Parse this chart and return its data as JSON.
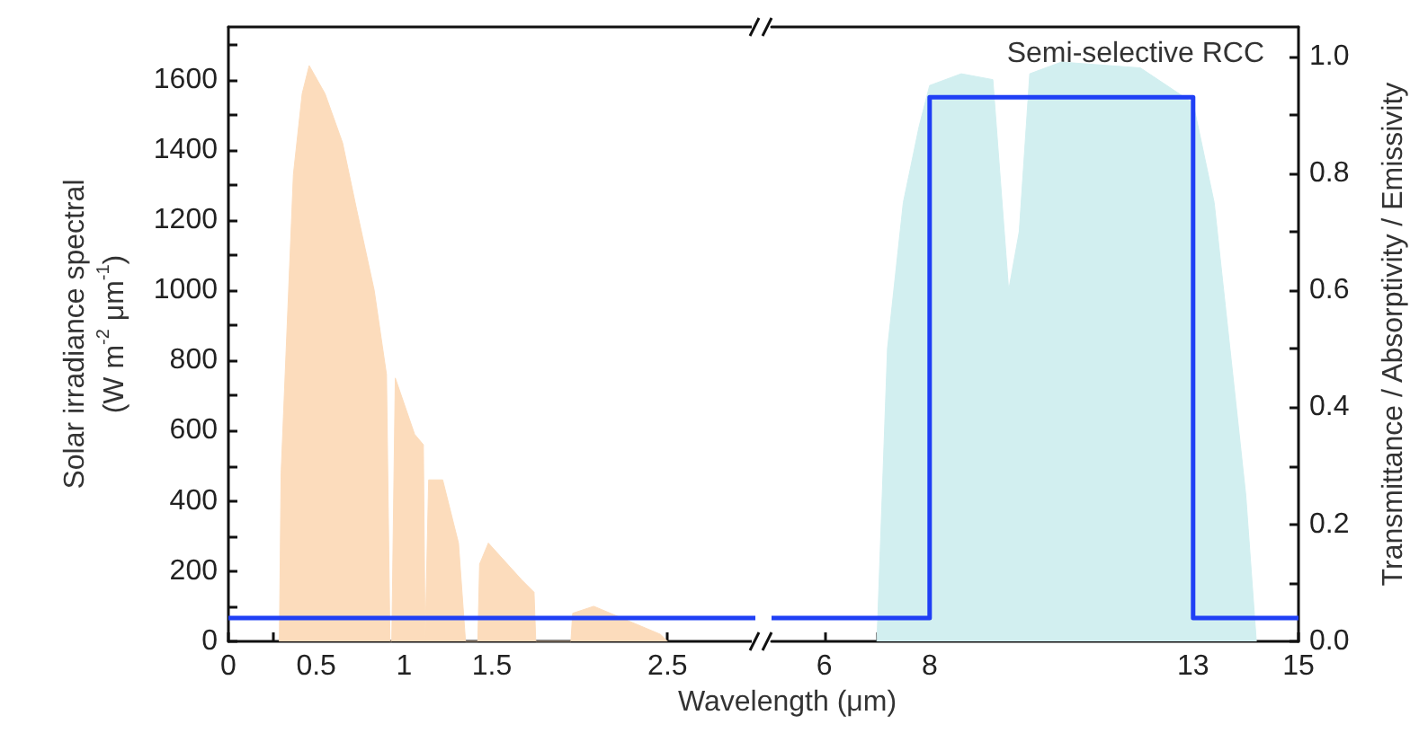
{
  "chart_data": [
    {
      "type": "area",
      "xlabel": "Wavelength (μm)",
      "ylabel": "Solar irradiance spectral\n(W m$^{-2}$ μm$^{-1}$)",
      "xlim": [
        0,
        3
      ],
      "xticks": [
        0,
        {
          "value": 0.25,
          "label": null
        },
        0.5,
        {
          "value": 0.75,
          "label": null
        },
        1,
        {
          "value": 1.25,
          "label": null
        },
        1.5,
        {
          "value": 2,
          "label": null
        },
        2.5
      ],
      "ylim": [
        0,
        1750
      ],
      "yticks": [
        0,
        {
          "value": 100,
          "label": null
        },
        200,
        {
          "value": 300,
          "label": null
        },
        400,
        {
          "value": 500,
          "label": null
        },
        600,
        {
          "value": 700,
          "label": null
        },
        800,
        {
          "value": 900,
          "label": null
        },
        1000,
        {
          "value": 1100,
          "label": null
        },
        1200,
        {
          "value": 1300,
          "label": null
        },
        1400,
        {
          "value": 1500,
          "label": null
        },
        1600,
        {
          "value": 1700,
          "label": null
        }
      ],
      "y2lim": [
        0,
        1.05
      ],
      "marker": "none",
      "line_style": "solid",
      "series": [
        {
          "color": "#fcdcbc",
          "x": [
            0.29,
            0.3,
            0.37,
            0.42,
            0.46,
            0.55,
            0.65,
            0.73,
            0.83,
            0.9,
            0.92,
            0.93,
            0.95,
            1.06,
            1.11,
            1.12,
            1.14,
            1.22,
            1.31,
            1.35,
            1.42,
            1.43,
            1.48,
            1.67,
            1.74,
            1.75,
            1.95,
            1.96,
            2.08,
            2.46,
            2.5
          ],
          "values": [
            0,
            480,
            1330,
            1560,
            1640,
            1560,
            1420,
            1230,
            1000,
            760,
            0,
            0,
            750,
            590,
            560,
            0,
            460,
            460,
            280,
            0,
            0,
            220,
            280,
            175,
            140,
            0,
            0,
            80,
            100,
            20,
            0
          ]
        },
        {
          "type": "line",
          "axis": "y2",
          "color": "#1f3ff5",
          "x": [
            0,
            3
          ],
          "values": [
            0.04,
            0.04
          ]
        }
      ]
    },
    {
      "type": "area",
      "xlim": [
        5,
        15
      ],
      "xticks": [
        6,
        {
          "value": 7,
          "label": null
        },
        8,
        {
          "value": 10,
          "label": null
        },
        13,
        {
          "value": 14,
          "label": null
        },
        15
      ],
      "y2label": "Transmittance / Absorptivity / Emissivity",
      "y2lim": [
        0,
        1.05
      ],
      "y2ticks": [
        {
          "value": 0,
          "label": "0.0"
        },
        {
          "value": 0.1,
          "label": null
        },
        0.2,
        {
          "value": 0.3,
          "label": null
        },
        0.4,
        {
          "value": 0.5,
          "label": null
        },
        0.6,
        {
          "value": 0.7,
          "label": null
        },
        0.8,
        {
          "value": 0.9,
          "label": null
        },
        {
          "value": 1,
          "label": "1.0"
        }
      ],
      "marker": "none",
      "line_style": "solid",
      "series": [
        {
          "axis": "y2",
          "color": "#d2eff0",
          "x": [
            7.0,
            7.2,
            7.5,
            7.8,
            8.0,
            8.6,
            9.2,
            9.5,
            9.7,
            9.9,
            10.5,
            12.0,
            13.0,
            13.4,
            13.7,
            14.0,
            14.2
          ],
          "values": [
            0,
            0.5,
            0.75,
            0.88,
            0.95,
            0.97,
            0.96,
            0.6,
            0.7,
            0.97,
            0.99,
            0.98,
            0.92,
            0.75,
            0.5,
            0.25,
            0
          ]
        },
        {
          "type": "step",
          "axis": "y2",
          "name": "Semi-selective RCC",
          "color": "#1f3ff5",
          "x": [
            5,
            8,
            13,
            15
          ],
          "values": [
            0.04,
            0.93,
            0.04,
            0.04
          ]
        }
      ]
    }
  ]
}
